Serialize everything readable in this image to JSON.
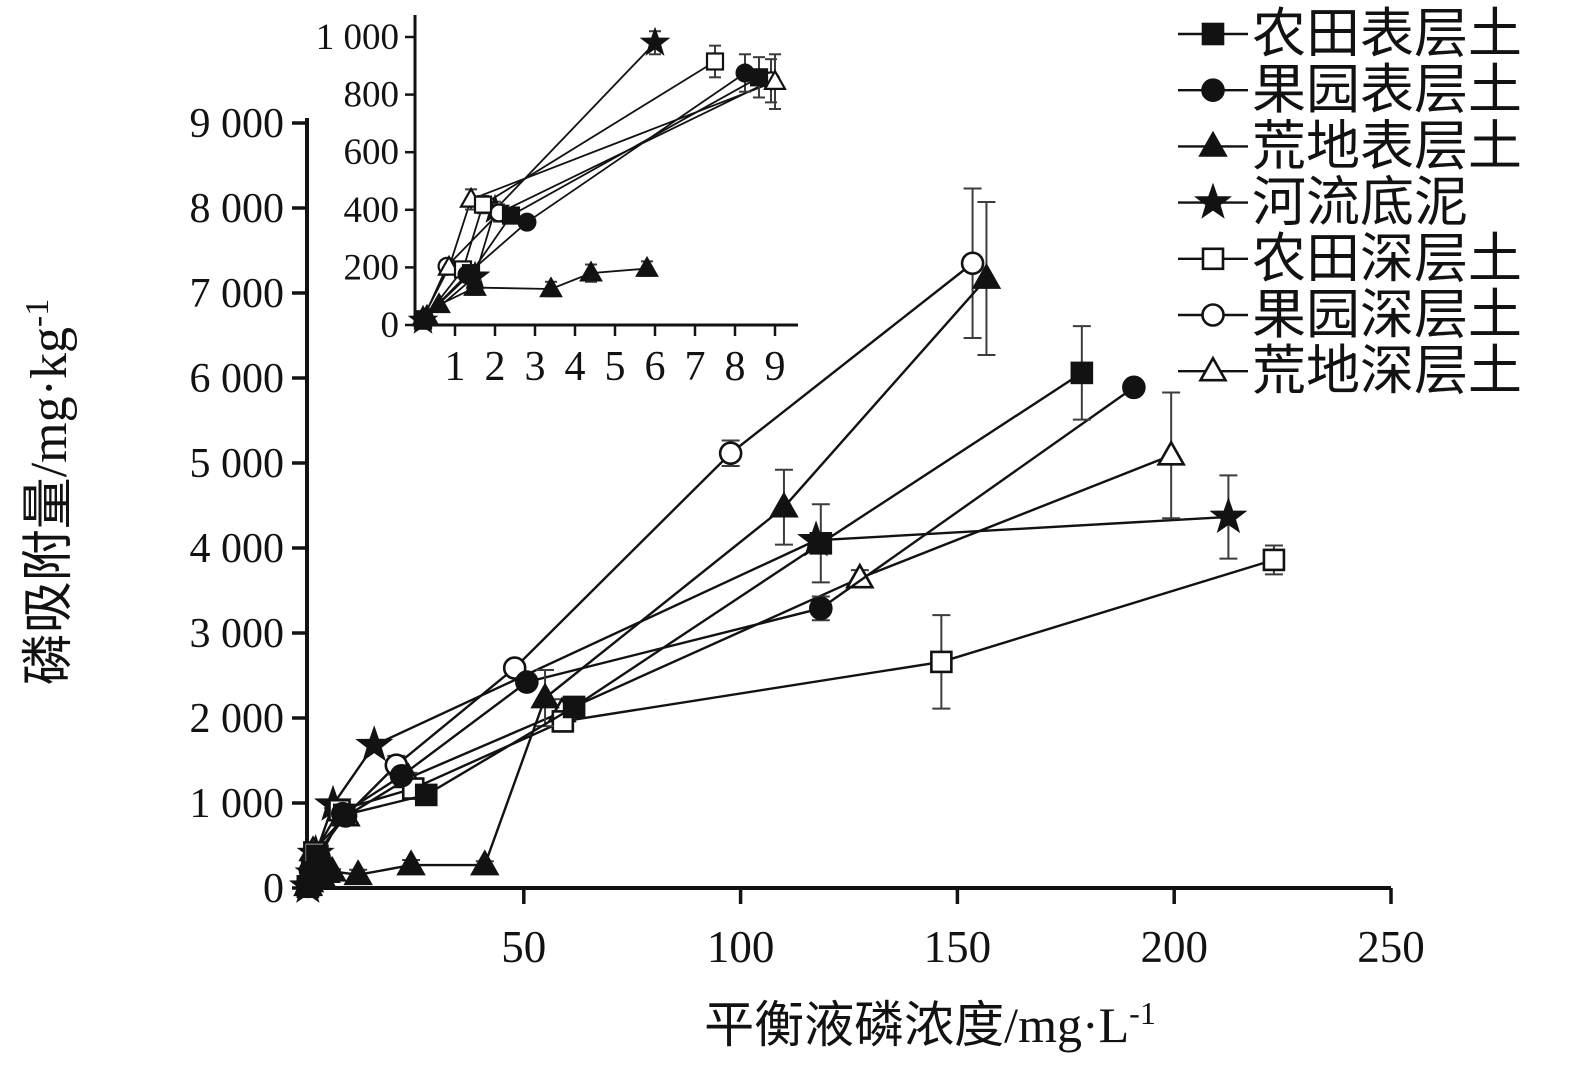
{
  "chart_data": {
    "type": "scatter",
    "title": "",
    "xlabel": {
      "base": "平衡液磷浓度/mg·L",
      "sup": "-1"
    },
    "ylabel": {
      "base": "磷吸附量/mg·kg",
      "sup": "-1"
    },
    "grid": false,
    "legend_position": "top-right",
    "main_axis": {
      "xlim": [
        0,
        250
      ],
      "ylim": [
        0,
        9000
      ],
      "xticks": [
        50,
        100,
        150,
        200,
        250
      ],
      "xtick_labels": [
        "50",
        "100",
        "150",
        "200",
        "250"
      ],
      "yticks": [
        0,
        1000,
        2000,
        3000,
        4000,
        5000,
        6000,
        7000,
        8000,
        9000
      ],
      "ytick_labels": [
        "0",
        "1 000",
        "2 000",
        "3 000",
        "4 000",
        "5 000",
        "6 000",
        "7 000",
        "8 000",
        "9 000"
      ]
    },
    "inset_axis": {
      "xlim": [
        0,
        9
      ],
      "ylim": [
        0,
        1000
      ],
      "xticks": [
        1,
        2,
        3,
        4,
        5,
        6,
        7,
        8,
        9
      ],
      "xtick_labels": [
        "1",
        "2",
        "3",
        "4",
        "5",
        "6",
        "7",
        "8",
        "9"
      ],
      "yticks": [
        0,
        200,
        400,
        600,
        800,
        1000
      ],
      "ytick_labels": [
        "0",
        "200",
        "400",
        "600",
        "800",
        "1 000"
      ]
    },
    "series": [
      {
        "name": "农田表层土",
        "marker": "square",
        "fill": "filled",
        "points": [
          [
            0.2,
            20,
            0
          ],
          [
            1.4,
            180,
            0
          ],
          [
            2.4,
            380,
            0
          ],
          [
            8.6,
            860,
            70
          ],
          [
            27.5,
            1095,
            70
          ],
          [
            61.6,
            2130,
            70
          ],
          [
            118.5,
            4055,
            460
          ],
          [
            178.7,
            6060,
            550
          ]
        ]
      },
      {
        "name": "果园表层土",
        "marker": "circle",
        "fill": "filled",
        "points": [
          [
            0.2,
            20,
            0
          ],
          [
            1.3,
            175,
            0
          ],
          [
            2.8,
            357,
            0
          ],
          [
            8.25,
            875,
            65
          ],
          [
            21.8,
            1320,
            80
          ],
          [
            50.7,
            2423,
            60
          ],
          [
            118.5,
            3290,
            140
          ],
          [
            190.7,
            5890,
            0
          ]
        ]
      },
      {
        "name": "荒地表层土",
        "marker": "triangle",
        "fill": "filled",
        "points": [
          [
            0.3,
            30,
            0
          ],
          [
            0.6,
            70,
            0
          ],
          [
            1.5,
            130,
            25
          ],
          [
            3.4,
            125,
            25
          ],
          [
            4.4,
            180,
            30
          ],
          [
            5.8,
            196,
            25
          ],
          [
            11.8,
            155,
            60
          ],
          [
            24,
            270,
            60
          ],
          [
            41,
            270,
            45
          ],
          [
            54.9,
            2235,
            330
          ],
          [
            110,
            4480,
            440
          ],
          [
            156.7,
            7170,
            900
          ]
        ]
      },
      {
        "name": "河流底泥",
        "marker": "star",
        "fill": "filled",
        "points": [
          [
            0.2,
            15,
            0
          ],
          [
            1.5,
            168,
            0
          ],
          [
            2.0,
            400,
            28
          ],
          [
            6.0,
            980,
            40
          ],
          [
            15.5,
            1680,
            0
          ],
          [
            117.4,
            4090,
            0
          ],
          [
            212.5,
            4365,
            490
          ]
        ]
      },
      {
        "name": "农田深层土",
        "marker": "square",
        "fill": "open",
        "points": [
          [
            0.2,
            15,
            0
          ],
          [
            1.2,
            193,
            0
          ],
          [
            1.7,
            418,
            30
          ],
          [
            7.5,
            915,
            55
          ],
          [
            24.5,
            1170,
            0
          ],
          [
            59,
            1960,
            120
          ],
          [
            146.3,
            2660,
            550
          ],
          [
            223,
            3860,
            170
          ]
        ]
      },
      {
        "name": "果园深层土",
        "marker": "circle",
        "fill": "open",
        "points": [
          [
            0.2,
            20,
            0
          ],
          [
            0.8,
            204,
            0
          ],
          [
            2.1,
            389,
            30
          ],
          [
            8.9,
            848,
            75
          ],
          [
            20.6,
            1445,
            110
          ],
          [
            47.9,
            2588,
            70
          ],
          [
            97.7,
            5115,
            150
          ],
          [
            153.5,
            7350,
            880
          ]
        ]
      },
      {
        "name": "荒地深层土",
        "marker": "triangle",
        "fill": "open",
        "points": [
          [
            0.2,
            25,
            0
          ],
          [
            0.85,
            200,
            0
          ],
          [
            1.4,
            436,
            35
          ],
          [
            9.0,
            845,
            95
          ],
          [
            23.4,
            1294,
            60
          ],
          [
            58.8,
            2070,
            150
          ],
          [
            127.5,
            3645,
            95
          ],
          [
            199.3,
            5090,
            740
          ]
        ]
      }
    ]
  },
  "legend": {
    "items": [
      {
        "label": "农田表层土",
        "marker": "square",
        "fill": "filled"
      },
      {
        "label": "果园表层土",
        "marker": "circle",
        "fill": "filled"
      },
      {
        "label": "荒地表层土",
        "marker": "triangle",
        "fill": "filled"
      },
      {
        "label": "河流底泥",
        "marker": "star",
        "fill": "filled"
      },
      {
        "label": "农田深层土",
        "marker": "square",
        "fill": "open"
      },
      {
        "label": "果园深层土",
        "marker": "circle",
        "fill": "open"
      },
      {
        "label": "荒地深层土",
        "marker": "triangle",
        "fill": "open"
      }
    ]
  },
  "colors": {
    "ink": "#121212",
    "error_bar": "#3c3c3c",
    "background": "#ffffff"
  }
}
